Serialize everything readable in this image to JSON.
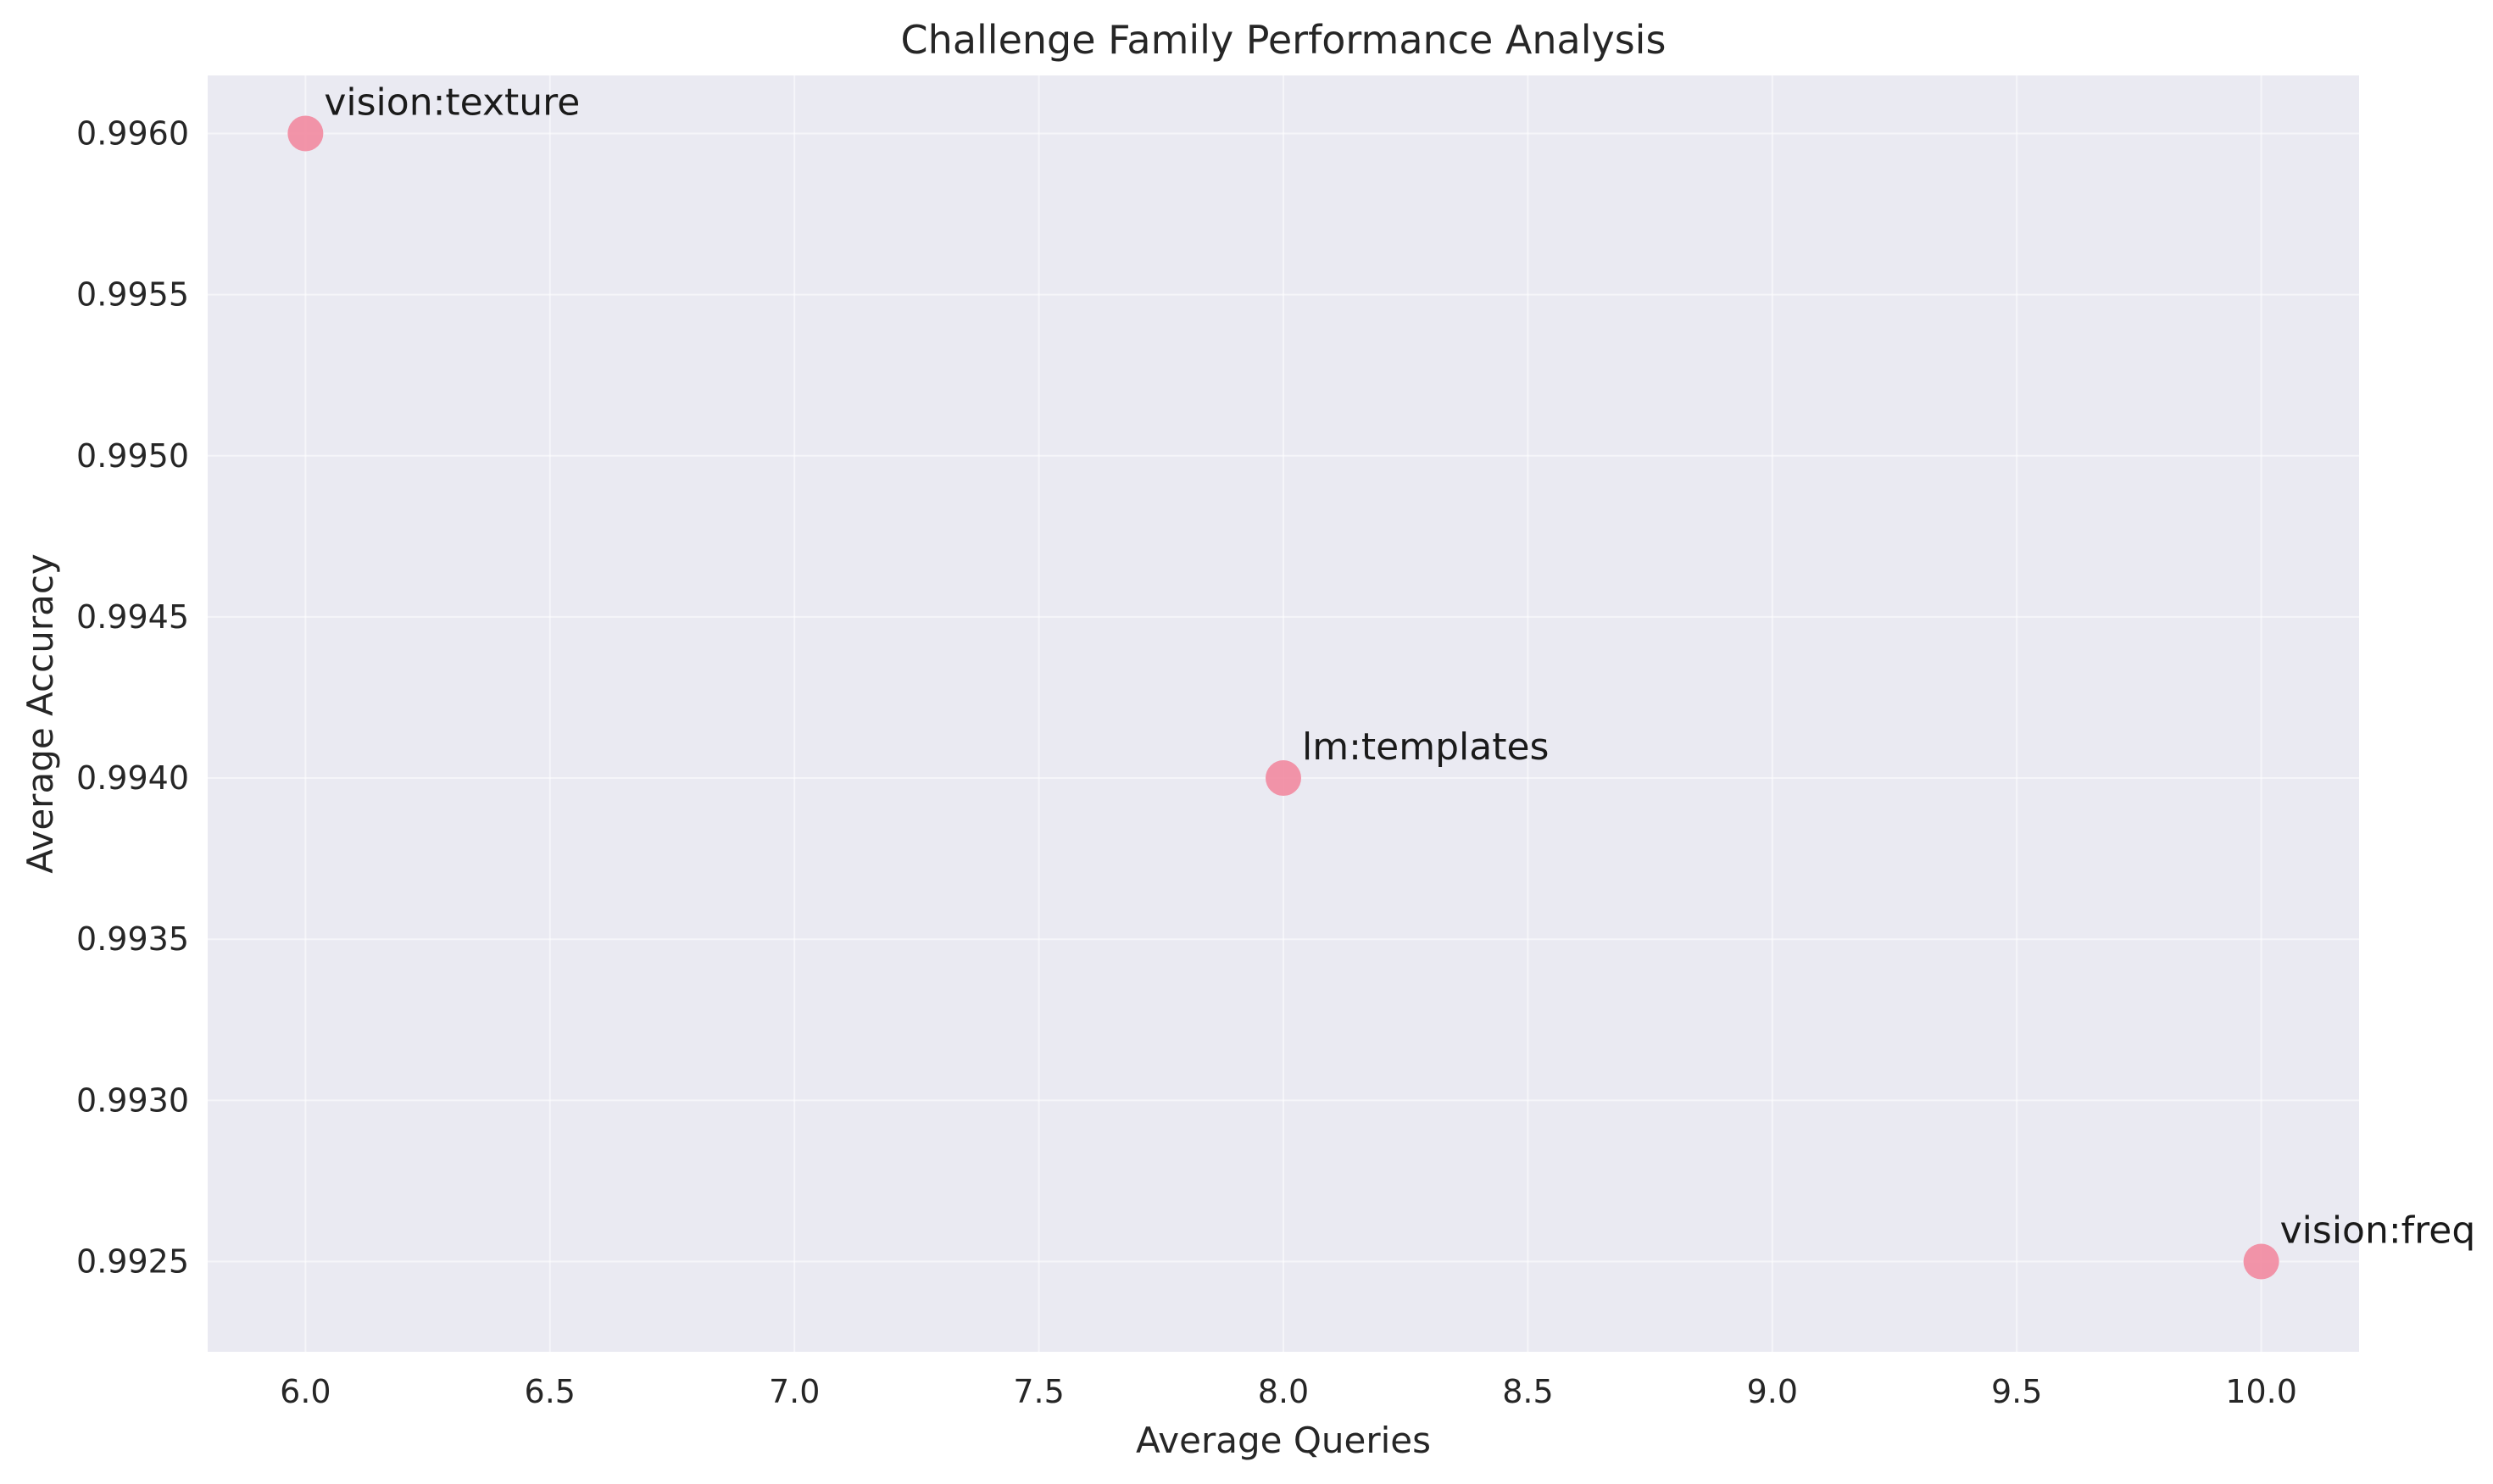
{
  "chart_data": {
    "type": "scatter",
    "title": "Challenge Family Performance Analysis",
    "xlabel": "Average Queries",
    "ylabel": "Average Accuracy",
    "xlim": [
      5.8,
      10.2
    ],
    "ylim": [
      0.99222,
      0.99618
    ],
    "xticks": [
      "6.0",
      "6.5",
      "7.0",
      "7.5",
      "8.0",
      "8.5",
      "9.0",
      "9.5",
      "10.0"
    ],
    "yticks": [
      "0.9925",
      "0.9930",
      "0.9935",
      "0.9940",
      "0.9945",
      "0.9950",
      "0.9955",
      "0.9960"
    ],
    "grid": true,
    "points": [
      {
        "x": 6.0,
        "y": 0.996,
        "label": "vision:texture"
      },
      {
        "x": 8.0,
        "y": 0.994,
        "label": "lm:templates"
      },
      {
        "x": 10.0,
        "y": 0.9925,
        "label": "vision:freq"
      }
    ],
    "colors": {
      "plot_background": "#EAEAF2",
      "marker": "#F28AA0",
      "grid": "#FFFFFF"
    }
  }
}
